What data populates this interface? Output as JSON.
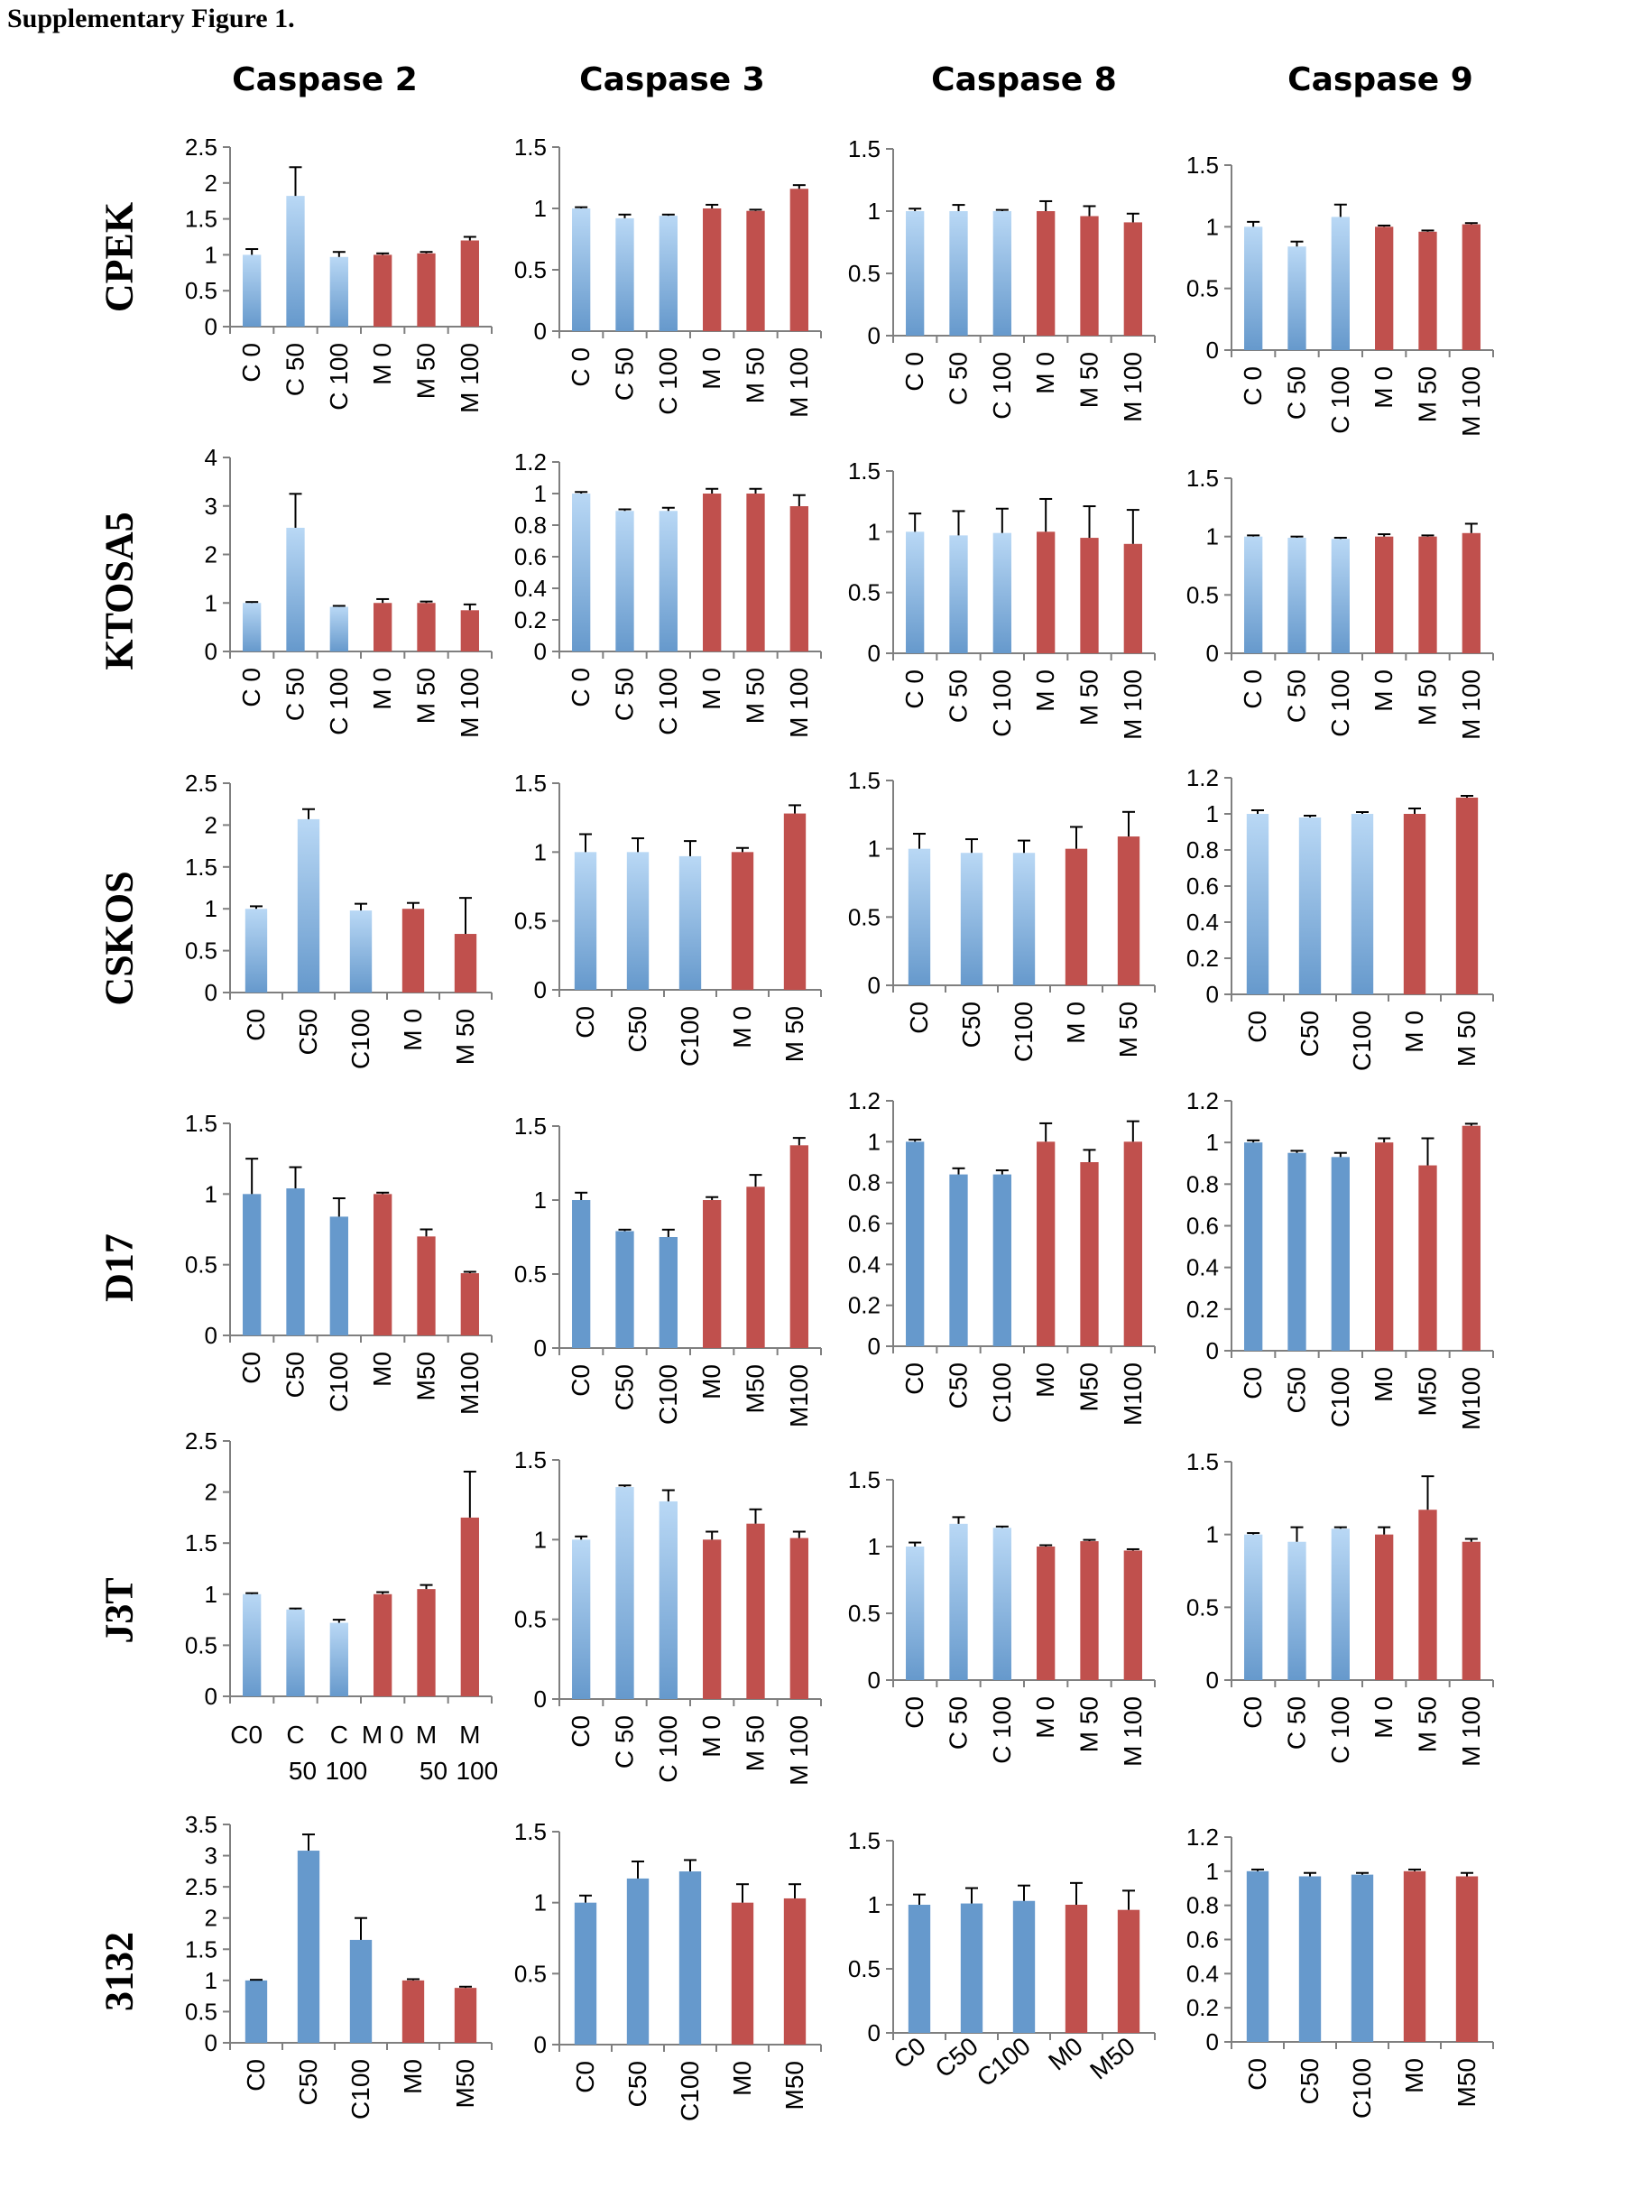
{
  "figure_title": "Supplementary Figure 1.",
  "column_headers": [
    "Caspase 2",
    "Caspase 3",
    "Caspase 8",
    "Caspase 9"
  ],
  "row_labels": [
    "CPEK",
    "KTOSA5",
    "CSKOS",
    "D17",
    "J3T",
    "3132"
  ],
  "colors": {
    "control": "#6699cc",
    "control_light": "#b9d8f5",
    "treated": "#c0504d",
    "axis": "#7f7f7f"
  },
  "chart_data": [
    {
      "row": "CPEK",
      "column": "Caspase 2",
      "type": "bar",
      "ylim": [
        0,
        2.5
      ],
      "ticks": [
        "0",
        "0.5",
        "1",
        "1.5",
        "2",
        "2.5"
      ],
      "categories": [
        "C 0",
        "C 50",
        "C 100",
        "M 0",
        "M 50",
        "M 100"
      ],
      "values": [
        1.0,
        1.82,
        0.97,
        1.0,
        1.02,
        1.2
      ],
      "errors": [
        0.08,
        0.4,
        0.07,
        0.02,
        0.02,
        0.05
      ],
      "groups": [
        "C",
        "C",
        "C",
        "M",
        "M",
        "M"
      ],
      "style": "gradient",
      "label_style": "rotated"
    },
    {
      "row": "CPEK",
      "column": "Caspase 3",
      "type": "bar",
      "ylim": [
        0,
        1.5
      ],
      "ticks": [
        "0",
        "0.5",
        "1",
        "1.5"
      ],
      "categories": [
        "C 0",
        "C 50",
        "C 100",
        "M 0",
        "M 50",
        "M 100"
      ],
      "values": [
        1.0,
        0.92,
        0.94,
        1.0,
        0.98,
        1.16
      ],
      "errors": [
        0.01,
        0.03,
        0.01,
        0.03,
        0.01,
        0.03
      ],
      "groups": [
        "C",
        "C",
        "C",
        "M",
        "M",
        "M"
      ],
      "style": "gradient",
      "label_style": "rotated"
    },
    {
      "row": "CPEK",
      "column": "Caspase 8",
      "type": "bar",
      "ylim": [
        0,
        1.5
      ],
      "ticks": [
        "0",
        "0.5",
        "1",
        "1.5"
      ],
      "categories": [
        "C 0",
        "C 50",
        "C 100",
        "M 0",
        "M 50",
        "M 100"
      ],
      "values": [
        1.0,
        1.0,
        1.0,
        1.0,
        0.96,
        0.91
      ],
      "errors": [
        0.02,
        0.05,
        0.01,
        0.08,
        0.08,
        0.07
      ],
      "groups": [
        "C",
        "C",
        "C",
        "M",
        "M",
        "M"
      ],
      "style": "gradient",
      "label_style": "rotated"
    },
    {
      "row": "CPEK",
      "column": "Caspase 9",
      "type": "bar",
      "ylim": [
        0,
        1.5
      ],
      "ticks": [
        "0",
        "0.5",
        "1",
        "1.5"
      ],
      "categories": [
        "C 0",
        "C 50",
        "C 100",
        "M 0",
        "M 50",
        "M 100"
      ],
      "values": [
        1.0,
        0.84,
        1.08,
        1.0,
        0.96,
        1.02
      ],
      "errors": [
        0.04,
        0.04,
        0.1,
        0.01,
        0.01,
        0.01
      ],
      "groups": [
        "C",
        "C",
        "C",
        "M",
        "M",
        "M"
      ],
      "style": "gradient",
      "label_style": "rotated"
    },
    {
      "row": "KTOSA5",
      "column": "Caspase 2",
      "type": "bar",
      "ylim": [
        0,
        4
      ],
      "ticks": [
        "0",
        "1",
        "2",
        "3",
        "4"
      ],
      "categories": [
        "C 0",
        "C 50",
        "C 100",
        "M 0",
        "M 50",
        "M 100"
      ],
      "values": [
        1.0,
        2.55,
        0.92,
        1.0,
        1.0,
        0.85
      ],
      "errors": [
        0.02,
        0.7,
        0.02,
        0.08,
        0.03,
        0.12
      ],
      "groups": [
        "C",
        "C",
        "C",
        "M",
        "M",
        "M"
      ],
      "style": "gradient",
      "label_style": "rotated"
    },
    {
      "row": "KTOSA5",
      "column": "Caspase 3",
      "type": "bar",
      "ylim": [
        0,
        1.2
      ],
      "ticks": [
        "0",
        "0.2",
        "0.4",
        "0.6",
        "0.8",
        "1",
        "1.2"
      ],
      "categories": [
        "C 0",
        "C 50",
        "C 100",
        "M 0",
        "M 50",
        "M 100"
      ],
      "values": [
        1.0,
        0.89,
        0.89,
        1.0,
        1.0,
        0.92
      ],
      "errors": [
        0.01,
        0.01,
        0.02,
        0.03,
        0.03,
        0.07
      ],
      "groups": [
        "C",
        "C",
        "C",
        "M",
        "M",
        "M"
      ],
      "style": "gradient",
      "label_style": "rotated"
    },
    {
      "row": "KTOSA5",
      "column": "Caspase 8",
      "type": "bar",
      "ylim": [
        0,
        1.5
      ],
      "ticks": [
        "0",
        "0.5",
        "1",
        "1.5"
      ],
      "categories": [
        "C 0",
        "C 50",
        "C 100",
        "M 0",
        "M 50",
        "M 100"
      ],
      "values": [
        1.0,
        0.97,
        0.99,
        1.0,
        0.95,
        0.9
      ],
      "errors": [
        0.15,
        0.2,
        0.2,
        0.27,
        0.26,
        0.28
      ],
      "groups": [
        "C",
        "C",
        "C",
        "M",
        "M",
        "M"
      ],
      "style": "gradient",
      "label_style": "rotated"
    },
    {
      "row": "KTOSA5",
      "column": "Caspase 9",
      "type": "bar",
      "ylim": [
        0,
        1.5
      ],
      "ticks": [
        "0",
        "0.5",
        "1",
        "1.5"
      ],
      "categories": [
        "C 0",
        "C 50",
        "C 100",
        "M 0",
        "M 50",
        "M 100"
      ],
      "values": [
        1.0,
        0.99,
        0.98,
        1.0,
        1.0,
        1.03
      ],
      "errors": [
        0.01,
        0.01,
        0.01,
        0.02,
        0.01,
        0.08
      ],
      "groups": [
        "C",
        "C",
        "C",
        "M",
        "M",
        "M"
      ],
      "style": "gradient",
      "label_style": "rotated"
    },
    {
      "row": "CSKOS",
      "column": "Caspase 2",
      "type": "bar",
      "ylim": [
        0,
        2.5
      ],
      "ticks": [
        "0",
        "0.5",
        "1",
        "1.5",
        "2",
        "2.5"
      ],
      "categories": [
        "C0",
        "C50",
        "C100",
        "M 0",
        "M 50"
      ],
      "values": [
        1.0,
        2.07,
        0.98,
        1.0,
        0.7
      ],
      "errors": [
        0.03,
        0.12,
        0.08,
        0.07,
        0.43
      ],
      "groups": [
        "C",
        "C",
        "C",
        "M",
        "M"
      ],
      "style": "gradient",
      "label_style": "rotated"
    },
    {
      "row": "CSKOS",
      "column": "Caspase 3",
      "type": "bar",
      "ylim": [
        0,
        1.5
      ],
      "ticks": [
        "0",
        "0.5",
        "1",
        "1.5"
      ],
      "categories": [
        "C0",
        "C50",
        "C100",
        "M 0",
        "M 50"
      ],
      "values": [
        1.0,
        1.0,
        0.97,
        1.0,
        1.28
      ],
      "errors": [
        0.13,
        0.1,
        0.11,
        0.03,
        0.06
      ],
      "groups": [
        "C",
        "C",
        "C",
        "M",
        "M"
      ],
      "style": "gradient",
      "label_style": "rotated"
    },
    {
      "row": "CSKOS",
      "column": "Caspase 8",
      "type": "bar",
      "ylim": [
        0,
        1.5
      ],
      "ticks": [
        "0",
        "0.5",
        "1",
        "1.5"
      ],
      "categories": [
        "C0",
        "C50",
        "C100",
        "M 0",
        "M 50"
      ],
      "values": [
        1.0,
        0.97,
        0.97,
        1.0,
        1.09
      ],
      "errors": [
        0.11,
        0.1,
        0.09,
        0.16,
        0.18
      ],
      "groups": [
        "C",
        "C",
        "C",
        "M",
        "M"
      ],
      "style": "gradient",
      "label_style": "rotated"
    },
    {
      "row": "CSKOS",
      "column": "Caspase 9",
      "type": "bar",
      "ylim": [
        0,
        1.2
      ],
      "ticks": [
        "0",
        "0.2",
        "0.4",
        "0.6",
        "0.8",
        "1",
        "1.2"
      ],
      "categories": [
        "C0",
        "C50",
        "C100",
        "M 0",
        "M 50"
      ],
      "values": [
        1.0,
        0.98,
        1.0,
        1.0,
        1.09
      ],
      "errors": [
        0.02,
        0.01,
        0.01,
        0.03,
        0.01
      ],
      "groups": [
        "C",
        "C",
        "C",
        "M",
        "M"
      ],
      "style": "gradient",
      "label_style": "rotated"
    },
    {
      "row": "D17",
      "column": "Caspase 2",
      "type": "bar",
      "ylim": [
        0,
        1.5
      ],
      "ticks": [
        "0",
        "0.5",
        "1",
        "1.5"
      ],
      "categories": [
        "C0",
        "C50",
        "C100",
        "M0",
        "M50",
        "M100"
      ],
      "values": [
        1.0,
        1.04,
        0.84,
        1.0,
        0.7,
        0.44
      ],
      "errors": [
        0.25,
        0.15,
        0.13,
        0.01,
        0.05,
        0.01
      ],
      "groups": [
        "C",
        "C",
        "C",
        "M",
        "M",
        "M"
      ],
      "style": "solid",
      "label_style": "rotated"
    },
    {
      "row": "D17",
      "column": "Caspase 3",
      "type": "bar",
      "ylim": [
        0,
        1.5
      ],
      "ticks": [
        "0",
        "0.5",
        "1",
        "1.5"
      ],
      "categories": [
        "C0",
        "C50",
        "C100",
        "M0",
        "M50",
        "M100"
      ],
      "values": [
        1.0,
        0.79,
        0.75,
        1.0,
        1.09,
        1.37
      ],
      "errors": [
        0.05,
        0.01,
        0.05,
        0.02,
        0.08,
        0.05
      ],
      "groups": [
        "C",
        "C",
        "C",
        "M",
        "M",
        "M"
      ],
      "style": "solid",
      "label_style": "rotated"
    },
    {
      "row": "D17",
      "column": "Caspase 8",
      "type": "bar",
      "ylim": [
        0,
        1.2
      ],
      "ticks": [
        "0",
        "0.2",
        "0.4",
        "0.6",
        "0.8",
        "1",
        "1.2"
      ],
      "categories": [
        "C0",
        "C50",
        "C100",
        "M0",
        "M50",
        "M100"
      ],
      "values": [
        1.0,
        0.84,
        0.84,
        1.0,
        0.9,
        1.0
      ],
      "errors": [
        0.01,
        0.03,
        0.02,
        0.09,
        0.06,
        0.1
      ],
      "groups": [
        "C",
        "C",
        "C",
        "M",
        "M",
        "M"
      ],
      "style": "solid",
      "label_style": "rotated"
    },
    {
      "row": "D17",
      "column": "Caspase 9",
      "type": "bar",
      "ylim": [
        0,
        1.2
      ],
      "ticks": [
        "0",
        "0.2",
        "0.4",
        "0.6",
        "0.8",
        "1",
        "1.2"
      ],
      "categories": [
        "C0",
        "C50",
        "C100",
        "M0",
        "M50",
        "M100"
      ],
      "values": [
        1.0,
        0.95,
        0.93,
        1.0,
        0.89,
        1.08
      ],
      "errors": [
        0.01,
        0.01,
        0.02,
        0.02,
        0.13,
        0.01
      ],
      "groups": [
        "C",
        "C",
        "C",
        "M",
        "M",
        "M"
      ],
      "style": "solid",
      "label_style": "rotated"
    },
    {
      "row": "J3T",
      "column": "Caspase 2",
      "type": "bar",
      "ylim": [
        0,
        2.5
      ],
      "ticks": [
        "0",
        "0.5",
        "1",
        "1.5",
        "2",
        "2.5"
      ],
      "categories": [
        "C0",
        "C 50",
        "C 100",
        "M 0",
        "M 50",
        "M 100"
      ],
      "category_lines": [
        [
          "C0",
          ""
        ],
        [
          "C",
          "50"
        ],
        [
          "C",
          "100"
        ],
        [
          "M 0",
          ""
        ],
        [
          "M",
          "50"
        ],
        [
          "M",
          "100"
        ]
      ],
      "values": [
        1.0,
        0.85,
        0.72,
        1.0,
        1.05,
        1.75
      ],
      "errors": [
        0.01,
        0.01,
        0.03,
        0.02,
        0.04,
        0.45
      ],
      "groups": [
        "C",
        "C",
        "C",
        "M",
        "M",
        "M"
      ],
      "style": "gradient",
      "label_style": "horizontal"
    },
    {
      "row": "J3T",
      "column": "Caspase 3",
      "type": "bar",
      "ylim": [
        0,
        1.5
      ],
      "ticks": [
        "0",
        "0.5",
        "1",
        "1.5"
      ],
      "categories": [
        "C0",
        "C 50",
        "C 100",
        "M 0",
        "M 50",
        "M 100"
      ],
      "values": [
        1.0,
        1.33,
        1.24,
        1.0,
        1.1,
        1.01
      ],
      "errors": [
        0.02,
        0.01,
        0.07,
        0.05,
        0.09,
        0.04
      ],
      "groups": [
        "C",
        "C",
        "C",
        "M",
        "M",
        "M"
      ],
      "style": "gradient",
      "label_style": "rotated"
    },
    {
      "row": "J3T",
      "column": "Caspase 8",
      "type": "bar",
      "ylim": [
        0,
        1.5
      ],
      "ticks": [
        "0",
        "0.5",
        "1",
        "1.5"
      ],
      "categories": [
        "C0",
        "C 50",
        "C 100",
        "M 0",
        "M 50",
        "M 100"
      ],
      "values": [
        1.0,
        1.17,
        1.14,
        1.0,
        1.04,
        0.97
      ],
      "errors": [
        0.03,
        0.05,
        0.01,
        0.01,
        0.01,
        0.01
      ],
      "groups": [
        "C",
        "C",
        "C",
        "M",
        "M",
        "M"
      ],
      "style": "gradient",
      "label_style": "rotated"
    },
    {
      "row": "J3T",
      "column": "Caspase 9",
      "type": "bar",
      "ylim": [
        0,
        1.5
      ],
      "ticks": [
        "0",
        "0.5",
        "1",
        "1.5"
      ],
      "categories": [
        "C0",
        "C 50",
        "C 100",
        "M 0",
        "M 50",
        "M 100"
      ],
      "values": [
        1.0,
        0.95,
        1.04,
        1.0,
        1.17,
        0.95
      ],
      "errors": [
        0.01,
        0.1,
        0.01,
        0.05,
        0.23,
        0.02
      ],
      "groups": [
        "C",
        "C",
        "C",
        "M",
        "M",
        "M"
      ],
      "style": "gradient",
      "label_style": "rotated"
    },
    {
      "row": "3132",
      "column": "Caspase 2",
      "type": "bar",
      "ylim": [
        0,
        3.5
      ],
      "ticks": [
        "0",
        "0.5",
        "1",
        "1.5",
        "2",
        "2.5",
        "3",
        "3.5"
      ],
      "categories": [
        "C0",
        "C50",
        "C100",
        "M0",
        "M50"
      ],
      "values": [
        1.0,
        3.08,
        1.65,
        1.0,
        0.88
      ],
      "errors": [
        0.01,
        0.26,
        0.35,
        0.02,
        0.02
      ],
      "groups": [
        "C",
        "C",
        "C",
        "M",
        "M"
      ],
      "style": "solid",
      "label_style": "rotated"
    },
    {
      "row": "3132",
      "column": "Caspase 3",
      "type": "bar",
      "ylim": [
        0,
        1.5
      ],
      "ticks": [
        "0",
        "0.5",
        "1",
        "1.5"
      ],
      "categories": [
        "C0",
        "C50",
        "C100",
        "M0",
        "M50"
      ],
      "values": [
        1.0,
        1.17,
        1.22,
        1.0,
        1.03
      ],
      "errors": [
        0.05,
        0.12,
        0.08,
        0.13,
        0.1
      ],
      "groups": [
        "C",
        "C",
        "C",
        "M",
        "M"
      ],
      "style": "solid",
      "label_style": "rotated"
    },
    {
      "row": "3132",
      "column": "Caspase 8",
      "type": "bar",
      "ylim": [
        0,
        1.5
      ],
      "ticks": [
        "0",
        "0.5",
        "1",
        "1.5"
      ],
      "categories": [
        "C0",
        "C50",
        "C100",
        "M0",
        "M50"
      ],
      "values": [
        1.0,
        1.01,
        1.03,
        1.0,
        0.96
      ],
      "errors": [
        0.08,
        0.12,
        0.12,
        0.17,
        0.15
      ],
      "groups": [
        "C",
        "C",
        "C",
        "M",
        "M"
      ],
      "style": "solid",
      "label_style": "diagonal"
    },
    {
      "row": "3132",
      "column": "Caspase 9",
      "type": "bar",
      "ylim": [
        0,
        1.2
      ],
      "ticks": [
        "0",
        "0.2",
        "0.4",
        "0.6",
        "0.8",
        "1",
        "1.2"
      ],
      "categories": [
        "C0",
        "C50",
        "C100",
        "M0",
        "M50"
      ],
      "values": [
        1.0,
        0.97,
        0.98,
        1.0,
        0.97
      ],
      "errors": [
        0.01,
        0.02,
        0.01,
        0.01,
        0.02
      ],
      "groups": [
        "C",
        "C",
        "C",
        "M",
        "M"
      ],
      "style": "solid",
      "label_style": "rotated"
    }
  ]
}
